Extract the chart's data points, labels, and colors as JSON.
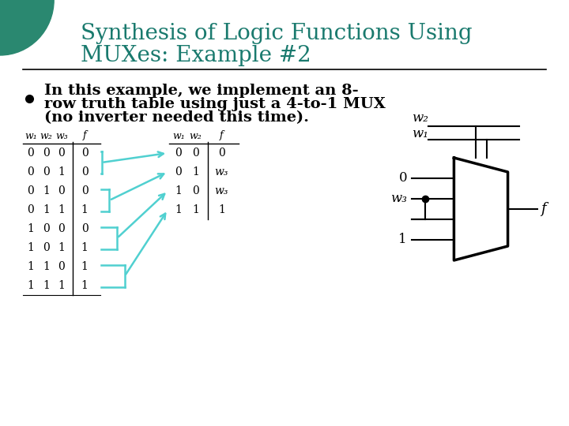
{
  "title_line1": "Synthesis of Logic Functions Using",
  "title_line2": "MUXes: Example #2",
  "title_color": "#1a7a6e",
  "bg_color": "#ffffff",
  "bullet_text_line1": "In this example, we implement an 8-",
  "bullet_text_line2": "row truth table using just a 4-to-1 MUX",
  "bullet_text_line3": "(no inverter needed this time).",
  "left_table_headers": [
    "w₁",
    "w₂",
    "w₃",
    "f"
  ],
  "left_table_rows": [
    [
      "0",
      "0",
      "0",
      "0"
    ],
    [
      "0",
      "0",
      "1",
      "0"
    ],
    [
      "0",
      "1",
      "0",
      "0"
    ],
    [
      "0",
      "1",
      "1",
      "1"
    ],
    [
      "1",
      "0",
      "0",
      "0"
    ],
    [
      "1",
      "0",
      "1",
      "1"
    ],
    [
      "1",
      "1",
      "0",
      "1"
    ],
    [
      "1",
      "1",
      "1",
      "1"
    ]
  ],
  "right_table_headers": [
    "w₁",
    "w₂",
    "f"
  ],
  "right_table_rows": [
    [
      "0",
      "0",
      "0"
    ],
    [
      "0",
      "1",
      "w₃"
    ],
    [
      "1",
      "0",
      "w₃"
    ],
    [
      "1",
      "1",
      "1"
    ]
  ],
  "arrow_color": "#50d0d0",
  "mux_sel": [
    "w₂",
    "w₁"
  ],
  "mux_output": "f",
  "mux_input_labels": [
    "0",
    "w₃",
    "1"
  ],
  "circle_color": "#2a8870"
}
